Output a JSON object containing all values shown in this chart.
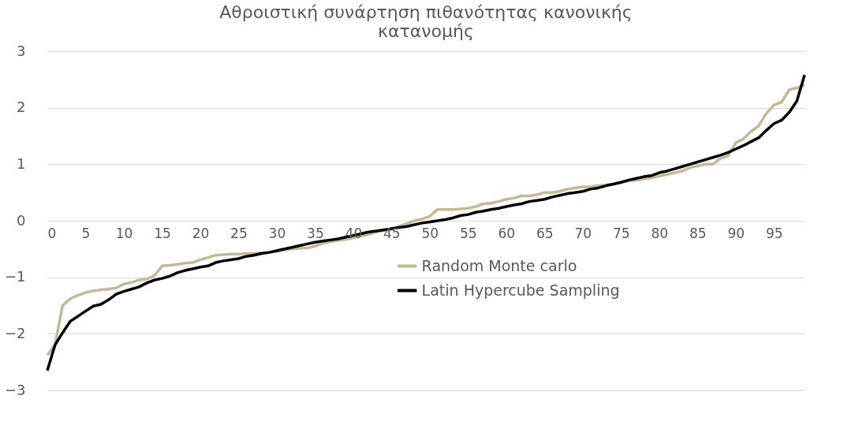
{
  "chart_data": {
    "type": "line",
    "title": "Αθροιστική συνάρτηση πιθανότητας κανονικής κατανομής",
    "x": [
      0,
      1,
      2,
      3,
      4,
      5,
      6,
      7,
      8,
      9,
      10,
      11,
      12,
      13,
      14,
      15,
      16,
      17,
      18,
      19,
      20,
      21,
      22,
      23,
      24,
      25,
      26,
      27,
      28,
      29,
      30,
      31,
      32,
      33,
      34,
      35,
      36,
      37,
      38,
      39,
      40,
      41,
      42,
      43,
      44,
      45,
      46,
      47,
      48,
      49,
      50,
      51,
      52,
      53,
      54,
      55,
      56,
      57,
      58,
      59,
      60,
      61,
      62,
      63,
      64,
      65,
      66,
      67,
      68,
      69,
      70,
      71,
      72,
      73,
      74,
      75,
      76,
      77,
      78,
      79,
      80,
      81,
      82,
      83,
      84,
      85,
      86,
      87,
      88,
      89,
      90,
      91,
      92,
      93,
      94,
      95,
      96,
      97,
      98,
      99
    ],
    "series": [
      {
        "name": "Random Monte carlo",
        "color": "#c4b994",
        "values": [
          -2.38,
          -2.2,
          -1.5,
          -1.38,
          -1.32,
          -1.27,
          -1.24,
          -1.22,
          -1.21,
          -1.19,
          -1.12,
          -1.09,
          -1.05,
          -1.03,
          -0.97,
          -0.8,
          -0.79,
          -0.77,
          -0.75,
          -0.74,
          -0.69,
          -0.65,
          -0.61,
          -0.6,
          -0.59,
          -0.59,
          -0.58,
          -0.58,
          -0.57,
          -0.56,
          -0.54,
          -0.52,
          -0.5,
          -0.49,
          -0.48,
          -0.45,
          -0.4,
          -0.37,
          -0.35,
          -0.33,
          -0.3,
          -0.27,
          -0.24,
          -0.2,
          -0.17,
          -0.15,
          -0.1,
          -0.05,
          0.0,
          0.03,
          0.08,
          0.2,
          0.2,
          0.2,
          0.21,
          0.22,
          0.25,
          0.3,
          0.31,
          0.34,
          0.38,
          0.4,
          0.44,
          0.44,
          0.46,
          0.5,
          0.5,
          0.52,
          0.56,
          0.58,
          0.6,
          0.6,
          0.62,
          0.63,
          0.65,
          0.68,
          0.7,
          0.72,
          0.74,
          0.76,
          0.79,
          0.82,
          0.85,
          0.88,
          0.94,
          0.97,
          1.0,
          1.0,
          1.1,
          1.15,
          1.38,
          1.45,
          1.58,
          1.68,
          1.9,
          2.05,
          2.1,
          2.32,
          2.35,
          2.4
        ]
      },
      {
        "name": "Latin Hypercube Sampling",
        "color": "#000000",
        "values": [
          -2.65,
          -2.2,
          -1.98,
          -1.78,
          -1.69,
          -1.6,
          -1.51,
          -1.48,
          -1.4,
          -1.3,
          -1.25,
          -1.21,
          -1.17,
          -1.1,
          -1.05,
          -1.02,
          -0.98,
          -0.92,
          -0.88,
          -0.85,
          -0.82,
          -0.8,
          -0.74,
          -0.71,
          -0.69,
          -0.67,
          -0.63,
          -0.61,
          -0.58,
          -0.56,
          -0.53,
          -0.5,
          -0.47,
          -0.44,
          -0.41,
          -0.38,
          -0.36,
          -0.34,
          -0.32,
          -0.29,
          -0.26,
          -0.23,
          -0.2,
          -0.18,
          -0.16,
          -0.14,
          -0.12,
          -0.1,
          -0.07,
          -0.04,
          -0.02,
          0.0,
          0.02,
          0.05,
          0.09,
          0.11,
          0.15,
          0.17,
          0.2,
          0.22,
          0.25,
          0.28,
          0.3,
          0.34,
          0.36,
          0.38,
          0.42,
          0.45,
          0.48,
          0.5,
          0.52,
          0.56,
          0.58,
          0.62,
          0.65,
          0.68,
          0.72,
          0.75,
          0.78,
          0.8,
          0.85,
          0.88,
          0.92,
          0.96,
          1.0,
          1.04,
          1.08,
          1.12,
          1.16,
          1.21,
          1.27,
          1.33,
          1.4,
          1.47,
          1.6,
          1.72,
          1.78,
          1.92,
          2.12,
          2.58
        ]
      }
    ],
    "xlim": [
      0,
      99
    ],
    "xticks": [
      0,
      5,
      10,
      15,
      20,
      25,
      30,
      35,
      40,
      45,
      50,
      55,
      60,
      65,
      70,
      75,
      80,
      85,
      90,
      95
    ],
    "ylim": [
      -3,
      3
    ],
    "yticks": [
      -3,
      -2,
      -1,
      0,
      1,
      2,
      3
    ],
    "grid": "y",
    "legend": "right",
    "line_style": "solid",
    "marker": "none"
  }
}
